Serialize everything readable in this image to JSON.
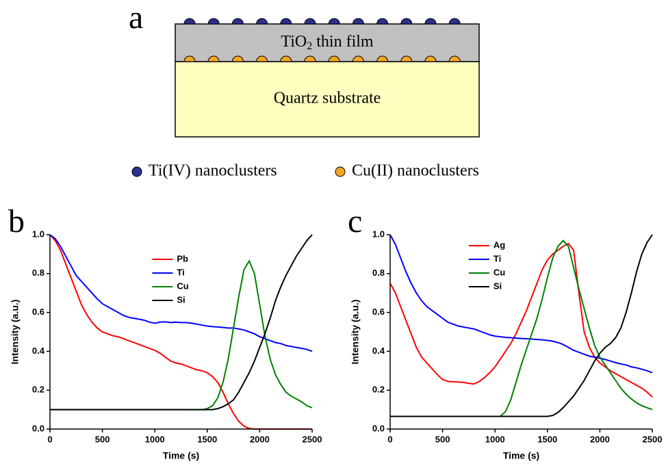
{
  "diagram": {
    "panel_label": "a",
    "film_formula": "TiO",
    "film_subscript": "2",
    "film_text": "thin film",
    "substrate_label": "Quartz substrate",
    "legend": [
      "Ti(IV) nanoclusters",
      "Cu(II) nanoclusters"
    ]
  },
  "chart_data": [
    {
      "type": "line",
      "panel_label": "b",
      "xlabel": "Time (s)",
      "ylabel": "Intensity (a.u.)",
      "x": [
        0,
        50,
        100,
        150,
        200,
        250,
        300,
        350,
        400,
        450,
        500,
        550,
        600,
        650,
        700,
        750,
        800,
        850,
        900,
        950,
        1000,
        1050,
        1100,
        1150,
        1200,
        1250,
        1300,
        1350,
        1400,
        1450,
        1500,
        1550,
        1600,
        1650,
        1700,
        1750,
        1800,
        1850,
        1900,
        1950,
        2000,
        2050,
        2100,
        2150,
        2200,
        2250,
        2300,
        2350,
        2400,
        2450,
        2500
      ],
      "xlim": [
        0,
        2500
      ],
      "xticks": [
        0,
        500,
        1000,
        1500,
        2000,
        2500
      ],
      "ylim": [
        0,
        1
      ],
      "yticks": [
        {
          "value": 0,
          "label": "0.0"
        },
        0.2,
        0.4,
        0.6,
        0.8,
        {
          "value": 1,
          "label": "1.0"
        }
      ],
      "legend": "top-center",
      "series": [
        {
          "name": "Pb",
          "color": "#ff0000",
          "values": [
            1.0,
            0.97,
            0.92,
            0.85,
            0.78,
            0.71,
            0.64,
            0.59,
            0.55,
            0.52,
            0.5,
            0.49,
            0.48,
            0.475,
            0.465,
            0.455,
            0.445,
            0.435,
            0.425,
            0.415,
            0.405,
            0.39,
            0.37,
            0.35,
            0.34,
            0.335,
            0.325,
            0.315,
            0.305,
            0.3,
            0.29,
            0.27,
            0.24,
            0.19,
            0.13,
            0.08,
            0.04,
            0.015,
            0.003,
            0,
            0,
            0,
            0,
            0,
            0,
            0,
            0,
            0,
            0,
            0,
            0
          ]
        },
        {
          "name": "Ti",
          "color": "#0000ff",
          "values": [
            1.0,
            0.98,
            0.94,
            0.89,
            0.84,
            0.79,
            0.76,
            0.73,
            0.7,
            0.67,
            0.645,
            0.63,
            0.615,
            0.6,
            0.585,
            0.575,
            0.57,
            0.565,
            0.56,
            0.55,
            0.545,
            0.55,
            0.552,
            0.548,
            0.55,
            0.548,
            0.548,
            0.545,
            0.54,
            0.535,
            0.53,
            0.527,
            0.525,
            0.523,
            0.52,
            0.52,
            0.515,
            0.51,
            0.5,
            0.49,
            0.475,
            0.465,
            0.455,
            0.445,
            0.44,
            0.43,
            0.425,
            0.42,
            0.415,
            0.41,
            0.4
          ]
        },
        {
          "name": "Cu",
          "color": "#008000",
          "values": [
            0.1,
            0.1,
            0.1,
            0.1,
            0.1,
            0.1,
            0.1,
            0.1,
            0.1,
            0.1,
            0.1,
            0.1,
            0.1,
            0.1,
            0.1,
            0.1,
            0.1,
            0.1,
            0.1,
            0.1,
            0.1,
            0.1,
            0.1,
            0.1,
            0.1,
            0.1,
            0.1,
            0.1,
            0.1,
            0.1,
            0.105,
            0.12,
            0.16,
            0.24,
            0.36,
            0.52,
            0.68,
            0.82,
            0.865,
            0.8,
            0.64,
            0.48,
            0.36,
            0.28,
            0.23,
            0.19,
            0.17,
            0.155,
            0.14,
            0.12,
            0.11
          ]
        },
        {
          "name": "Si",
          "color": "#000000",
          "values": [
            0.1,
            0.1,
            0.1,
            0.1,
            0.1,
            0.1,
            0.1,
            0.1,
            0.1,
            0.1,
            0.1,
            0.1,
            0.1,
            0.1,
            0.1,
            0.1,
            0.1,
            0.1,
            0.1,
            0.1,
            0.1,
            0.1,
            0.1,
            0.1,
            0.1,
            0.1,
            0.1,
            0.1,
            0.1,
            0.1,
            0.1,
            0.1,
            0.105,
            0.115,
            0.13,
            0.15,
            0.19,
            0.24,
            0.29,
            0.35,
            0.42,
            0.49,
            0.57,
            0.66,
            0.73,
            0.79,
            0.84,
            0.89,
            0.93,
            0.97,
            1.0
          ]
        }
      ]
    },
    {
      "type": "line",
      "panel_label": "c",
      "xlabel": "Time (s)",
      "ylabel": "Intensity (a.u.)",
      "x": [
        0,
        50,
        100,
        150,
        200,
        250,
        300,
        350,
        400,
        450,
        500,
        550,
        600,
        650,
        700,
        750,
        800,
        850,
        900,
        950,
        1000,
        1050,
        1100,
        1150,
        1200,
        1250,
        1300,
        1350,
        1400,
        1450,
        1500,
        1550,
        1600,
        1650,
        1700,
        1750,
        1800,
        1850,
        1900,
        1950,
        2000,
        2050,
        2100,
        2150,
        2200,
        2250,
        2300,
        2350,
        2400,
        2450,
        2500
      ],
      "xlim": [
        0,
        2500
      ],
      "xticks": [
        0,
        500,
        1000,
        1500,
        2000,
        2500
      ],
      "ylim": [
        0,
        1
      ],
      "yticks": [
        {
          "value": 0,
          "label": "0.0"
        },
        0.2,
        0.4,
        0.6,
        0.8,
        {
          "value": 1,
          "label": "1.0"
        }
      ],
      "legend": "top-left",
      "series": [
        {
          "name": "Ag",
          "color": "#ff0000",
          "values": [
            0.75,
            0.7,
            0.63,
            0.56,
            0.49,
            0.42,
            0.37,
            0.34,
            0.31,
            0.28,
            0.255,
            0.245,
            0.243,
            0.242,
            0.24,
            0.235,
            0.232,
            0.245,
            0.265,
            0.29,
            0.32,
            0.36,
            0.4,
            0.44,
            0.49,
            0.55,
            0.61,
            0.68,
            0.75,
            0.82,
            0.87,
            0.9,
            0.92,
            0.94,
            0.955,
            0.92,
            0.7,
            0.5,
            0.42,
            0.37,
            0.34,
            0.32,
            0.3,
            0.285,
            0.27,
            0.255,
            0.24,
            0.225,
            0.21,
            0.19,
            0.165
          ]
        },
        {
          "name": "Ti",
          "color": "#0000ff",
          "values": [
            1.0,
            0.95,
            0.88,
            0.81,
            0.75,
            0.7,
            0.66,
            0.63,
            0.61,
            0.59,
            0.57,
            0.55,
            0.54,
            0.53,
            0.525,
            0.52,
            0.515,
            0.505,
            0.495,
            0.485,
            0.478,
            0.475,
            0.472,
            0.47,
            0.468,
            0.466,
            0.465,
            0.463,
            0.461,
            0.459,
            0.456,
            0.452,
            0.445,
            0.435,
            0.42,
            0.405,
            0.395,
            0.385,
            0.375,
            0.37,
            0.365,
            0.358,
            0.35,
            0.342,
            0.335,
            0.33,
            0.32,
            0.315,
            0.308,
            0.3,
            0.29
          ]
        },
        {
          "name": "Cu",
          "color": "#008000",
          "values": [
            0.065,
            0.065,
            0.065,
            0.065,
            0.065,
            0.065,
            0.065,
            0.065,
            0.065,
            0.065,
            0.065,
            0.065,
            0.065,
            0.065,
            0.065,
            0.065,
            0.065,
            0.065,
            0.065,
            0.065,
            0.065,
            0.065,
            0.09,
            0.15,
            0.24,
            0.33,
            0.41,
            0.49,
            0.57,
            0.67,
            0.78,
            0.88,
            0.94,
            0.97,
            0.94,
            0.83,
            0.72,
            0.62,
            0.52,
            0.43,
            0.37,
            0.33,
            0.29,
            0.25,
            0.21,
            0.18,
            0.155,
            0.135,
            0.12,
            0.11,
            0.1
          ]
        },
        {
          "name": "Si",
          "color": "#000000",
          "values": [
            0.065,
            0.065,
            0.065,
            0.065,
            0.065,
            0.065,
            0.065,
            0.065,
            0.065,
            0.065,
            0.065,
            0.065,
            0.065,
            0.065,
            0.065,
            0.065,
            0.065,
            0.065,
            0.065,
            0.065,
            0.065,
            0.065,
            0.065,
            0.065,
            0.065,
            0.065,
            0.065,
            0.065,
            0.065,
            0.065,
            0.065,
            0.07,
            0.085,
            0.11,
            0.14,
            0.17,
            0.21,
            0.25,
            0.3,
            0.35,
            0.39,
            0.42,
            0.44,
            0.47,
            0.52,
            0.6,
            0.7,
            0.81,
            0.9,
            0.96,
            1.0
          ]
        }
      ]
    }
  ]
}
